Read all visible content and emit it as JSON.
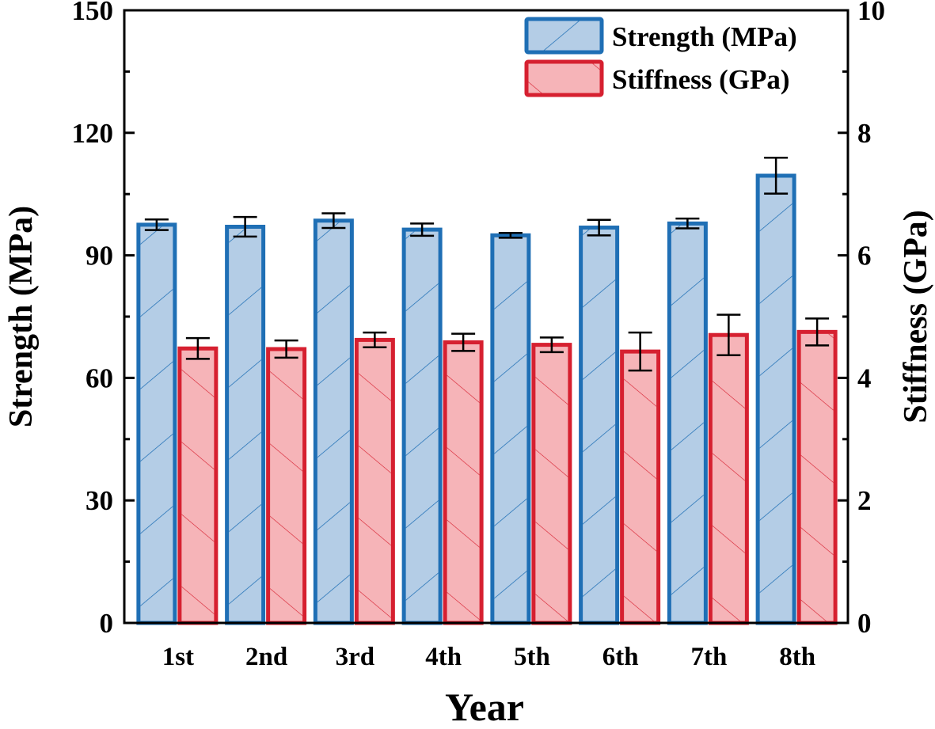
{
  "chart_data": {
    "type": "bar",
    "title": "",
    "xlabel": "Year",
    "ylabel": "Strength (MPa)",
    "y2label": "Stiffness (GPa)",
    "categories": [
      "1st",
      "2nd",
      "3rd",
      "4th",
      "5th",
      "6th",
      "7th",
      "8th"
    ],
    "ylim": [
      0,
      150
    ],
    "y2lim": [
      0,
      10
    ],
    "yticks": [
      0,
      30,
      60,
      90,
      120,
      150
    ],
    "y2ticks": [
      0,
      2,
      4,
      6,
      8,
      10
    ],
    "grid": false,
    "legend_position": "top-right",
    "series": [
      {
        "name": "Strength (MPa)",
        "axis": "left",
        "color": "#1f6fb5",
        "fill": "#b4cde6",
        "hatch": "forward-diagonal",
        "values": [
          97.5,
          97.0,
          98.5,
          96.3,
          94.9,
          96.8,
          97.8,
          109.5
        ],
        "errors": [
          1.3,
          2.4,
          1.8,
          1.5,
          0.6,
          1.9,
          1.2,
          4.4
        ]
      },
      {
        "name": "Stiffness (GPa)",
        "axis": "right",
        "color": "#d62030",
        "fill": "#f6b4b8",
        "hatch": "back-diagonal",
        "values": [
          4.48,
          4.47,
          4.62,
          4.58,
          4.54,
          4.43,
          4.7,
          4.75
        ],
        "errors": [
          0.17,
          0.14,
          0.12,
          0.14,
          0.12,
          0.31,
          0.33,
          0.22
        ]
      }
    ]
  }
}
